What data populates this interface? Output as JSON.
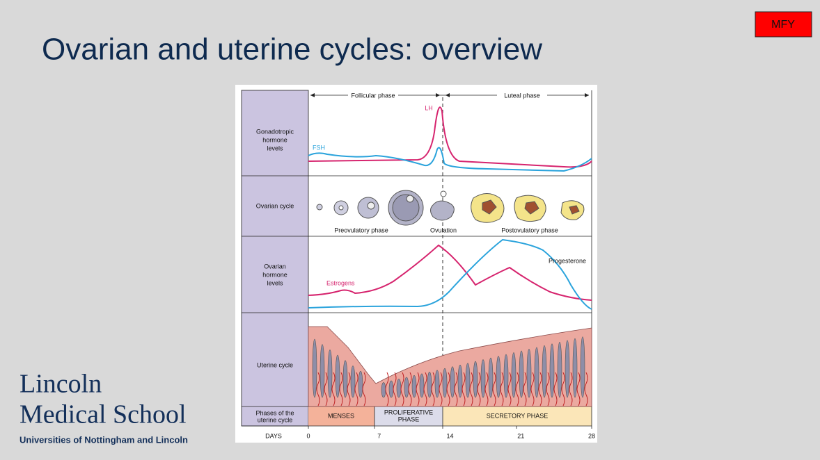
{
  "slide": {
    "title": "Ovarian and uterine cycles: overview",
    "badge": "MFY"
  },
  "logo": {
    "name": [
      "Lincoln",
      "Medical School"
    ],
    "subtitle": "Universities of Nottingham and Lincoln"
  },
  "figure": {
    "phases_top": [
      "Follicular phase",
      "Luteal phase"
    ],
    "rows": [
      [
        "Gonadotropic",
        "hormone",
        "levels"
      ],
      [
        "Ovarian cycle"
      ],
      [
        "Ovarian",
        "hormone",
        "levels"
      ],
      [
        "Uterine cycle"
      ],
      [
        "Phases of the",
        "uterine cycle"
      ]
    ],
    "hormone_labels": {
      "lh": "LH",
      "fsh": "FSH",
      "estrogens": "Estrogens",
      "progesterone": "Progesterone"
    },
    "ovarian_labels": [
      "Preovulatory phase",
      "Ovulation",
      "Postovulatory phase"
    ],
    "uterine_phases": [
      [
        "MENSES"
      ],
      [
        "PROLIFERATIVE",
        "PHASE"
      ],
      [
        "SECRETORY PHASE"
      ]
    ],
    "days_label": "DAYS",
    "days": [
      "0",
      "7",
      "14",
      "21",
      "28"
    ]
  }
}
